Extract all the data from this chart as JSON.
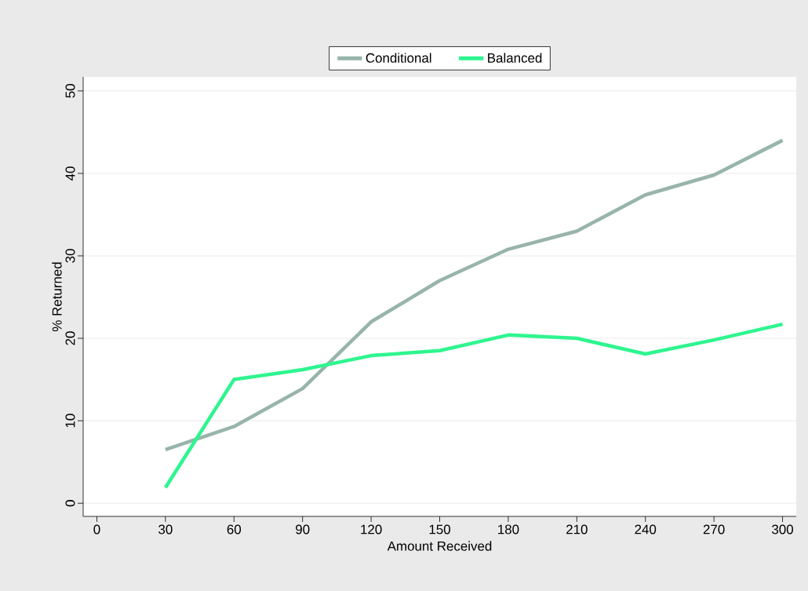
{
  "chart_data": {
    "type": "line",
    "xlabel": "Amount Received",
    "ylabel": "% Returned",
    "x": [
      30,
      60,
      90,
      120,
      150,
      180,
      210,
      240,
      270,
      300
    ],
    "series": [
      {
        "name": "Conditional",
        "color": "#98b4ac",
        "values": [
          6.5,
          9.3,
          13.9,
          22.0,
          27.0,
          30.8,
          33.0,
          37.4,
          39.8,
          44.0
        ]
      },
      {
        "name": "Balanced",
        "color": "#2ef58f",
        "values": [
          1.9,
          15.0,
          16.2,
          17.9,
          18.5,
          20.4,
          20.0,
          18.1,
          19.8,
          21.7
        ]
      }
    ],
    "xlim": [
      -6,
      306
    ],
    "ylim": [
      -1.6,
      51.7
    ],
    "xticks": [
      0,
      30,
      60,
      90,
      120,
      150,
      180,
      210,
      240,
      270,
      300
    ],
    "yticks": [
      0,
      10,
      20,
      30,
      40,
      50
    ],
    "grid": "y",
    "legend": "top",
    "marker": "none",
    "line_style": "solid"
  }
}
